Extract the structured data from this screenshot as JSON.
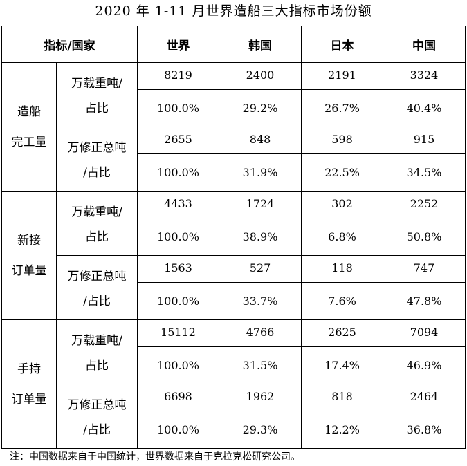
{
  "title": "2020 年 1-11 月世界造船三大指标市场份额",
  "header": {
    "corner": "指标/国家",
    "countries": [
      "世界",
      "韩国",
      "日本",
      "中国"
    ]
  },
  "categories": [
    {
      "name_lines": [
        "造船",
        "完工量"
      ],
      "metrics": [
        {
          "label_lines": [
            "万载重吨/",
            "占比"
          ],
          "values": [
            "8219",
            "2400",
            "2191",
            "3324"
          ],
          "shares": [
            "100.0%",
            "29.2%",
            "26.7%",
            "40.4%"
          ]
        },
        {
          "label_lines": [
            "万修正总吨",
            "/占比"
          ],
          "values": [
            "2655",
            "848",
            "598",
            "915"
          ],
          "shares": [
            "100.0%",
            "31.9%",
            "22.5%",
            "34.5%"
          ]
        }
      ]
    },
    {
      "name_lines": [
        "新接",
        "订单量"
      ],
      "metrics": [
        {
          "label_lines": [
            "万载重吨/",
            "占比"
          ],
          "values": [
            "4433",
            "1724",
            "302",
            "2252"
          ],
          "shares": [
            "100.0%",
            "38.9%",
            "6.8%",
            "50.8%"
          ]
        },
        {
          "label_lines": [
            "万修正总吨",
            "/占比"
          ],
          "values": [
            "1563",
            "527",
            "118",
            "747"
          ],
          "shares": [
            "100.0%",
            "33.7%",
            "7.6%",
            "47.8%"
          ]
        }
      ]
    },
    {
      "name_lines": [
        "手持",
        "订单量"
      ],
      "metrics": [
        {
          "label_lines": [
            "万载重吨/",
            "占比"
          ],
          "values": [
            "15112",
            "4766",
            "2625",
            "7094"
          ],
          "shares": [
            "100.0%",
            "31.5%",
            "17.4%",
            "46.9%"
          ]
        },
        {
          "label_lines": [
            "万修正总吨",
            "/占比"
          ],
          "values": [
            "6698",
            "1962",
            "818",
            "2464"
          ],
          "shares": [
            "100.0%",
            "29.3%",
            "12.2%",
            "36.8%"
          ]
        }
      ]
    }
  ],
  "note": "注：中国数据来自于中国统计，世界数据来自于克拉克松研究公司。"
}
